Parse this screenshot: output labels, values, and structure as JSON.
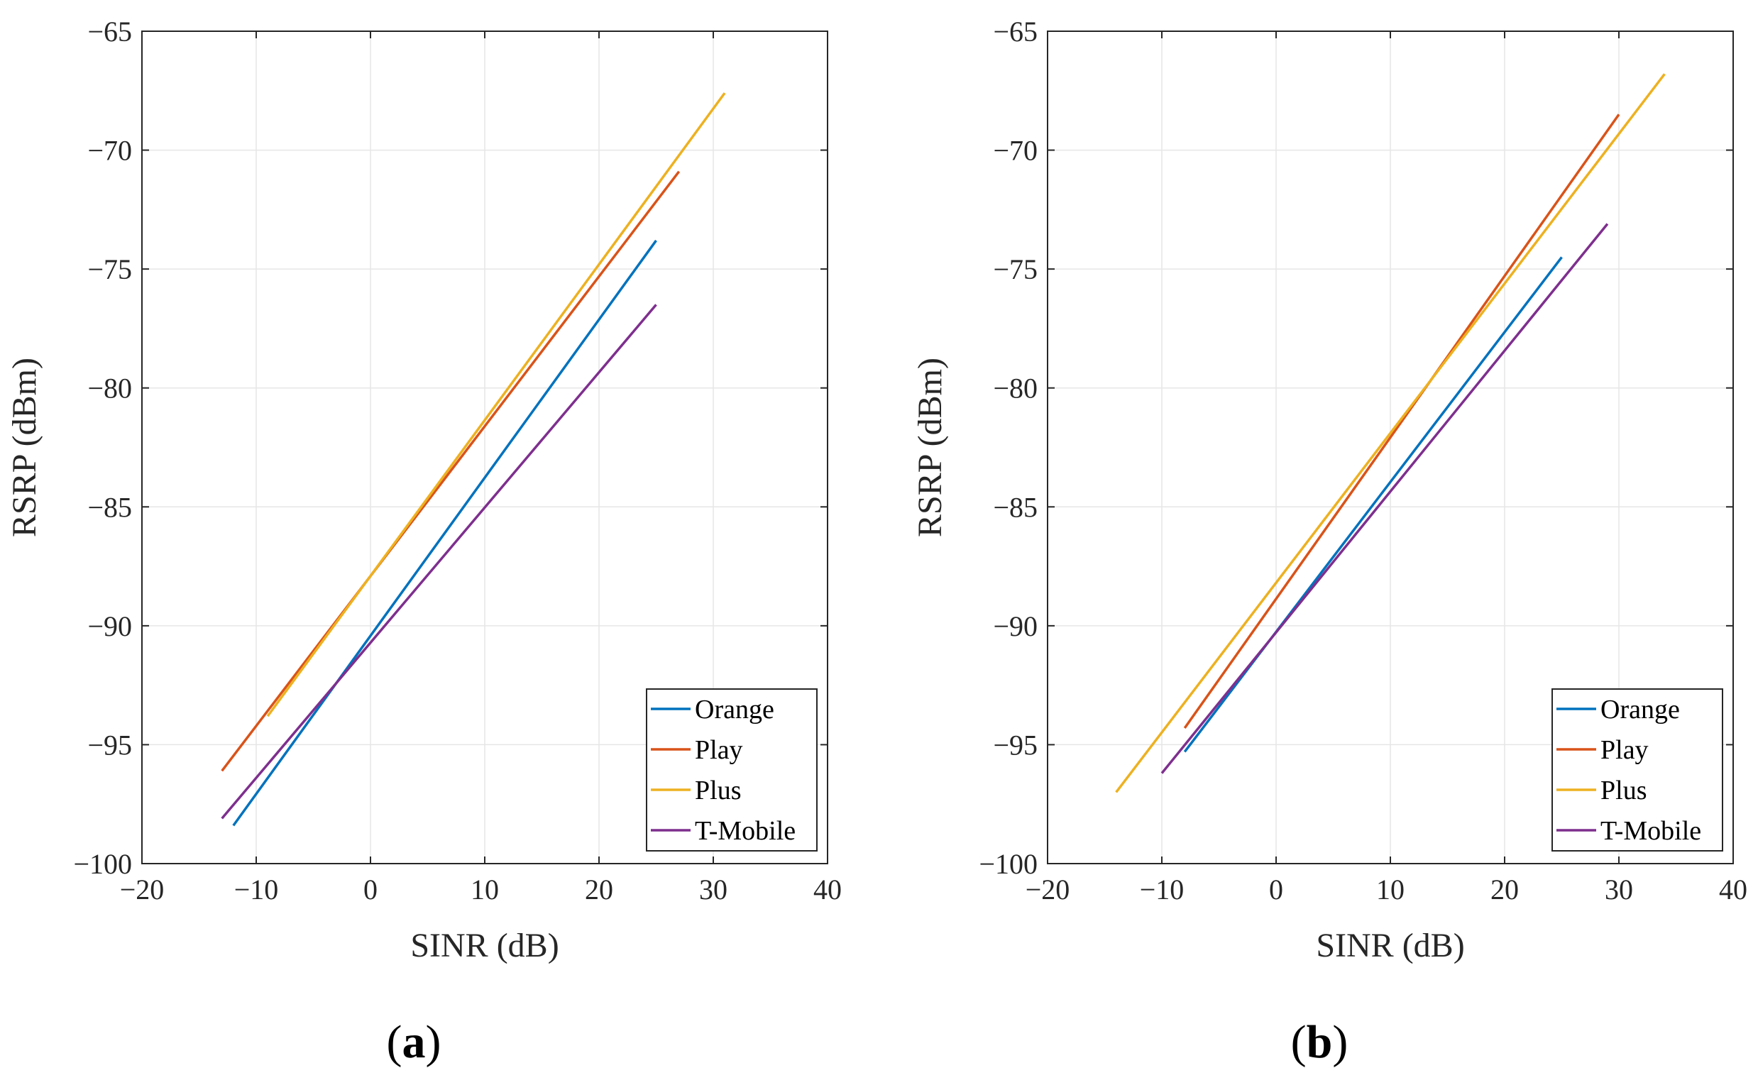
{
  "chart_data": [
    {
      "type": "line",
      "panel_label": "a",
      "title": "",
      "xlabel": "SINR  (dB)",
      "ylabel": "RSRP  (dBm)",
      "xlim": [
        -20,
        40
      ],
      "ylim": [
        -100,
        -65
      ],
      "xticks": [
        -20,
        -10,
        0,
        10,
        20,
        30,
        40
      ],
      "yticks": [
        -100,
        -95,
        -90,
        -85,
        -80,
        -75,
        -70,
        -65
      ],
      "grid": true,
      "legend_position": "bottom-right",
      "series": [
        {
          "name": "Orange",
          "color": "#0072BD",
          "x": [
            -12,
            25
          ],
          "y": [
            -98.4,
            -73.8
          ]
        },
        {
          "name": "Play",
          "color": "#D95319",
          "x": [
            -13,
            27
          ],
          "y": [
            -96.1,
            -70.9
          ]
        },
        {
          "name": "Plus",
          "color": "#EDB120",
          "x": [
            -9,
            31
          ],
          "y": [
            -93.8,
            -67.6
          ]
        },
        {
          "name": "T-Mobile",
          "color": "#7E2F8E",
          "x": [
            -13,
            25
          ],
          "y": [
            -98.1,
            -76.5
          ]
        }
      ]
    },
    {
      "type": "line",
      "panel_label": "b",
      "title": "",
      "xlabel": "SINR  (dB)",
      "ylabel": "RSRP  (dBm)",
      "xlim": [
        -20,
        40
      ],
      "ylim": [
        -100,
        -65
      ],
      "xticks": [
        -20,
        -10,
        0,
        10,
        20,
        30,
        40
      ],
      "yticks": [
        -100,
        -95,
        -90,
        -85,
        -80,
        -75,
        -70,
        -65
      ],
      "grid": true,
      "legend_position": "bottom-right",
      "series": [
        {
          "name": "Orange",
          "color": "#0072BD",
          "x": [
            -8,
            25
          ],
          "y": [
            -95.3,
            -74.5
          ]
        },
        {
          "name": "Play",
          "color": "#D95319",
          "x": [
            -8,
            30
          ],
          "y": [
            -94.3,
            -68.5
          ]
        },
        {
          "name": "Plus",
          "color": "#EDB120",
          "x": [
            -14,
            34
          ],
          "y": [
            -97.0,
            -66.8
          ]
        },
        {
          "name": "T-Mobile",
          "color": "#7E2F8E",
          "x": [
            -10,
            29
          ],
          "y": [
            -96.2,
            -73.1
          ]
        }
      ]
    }
  ]
}
